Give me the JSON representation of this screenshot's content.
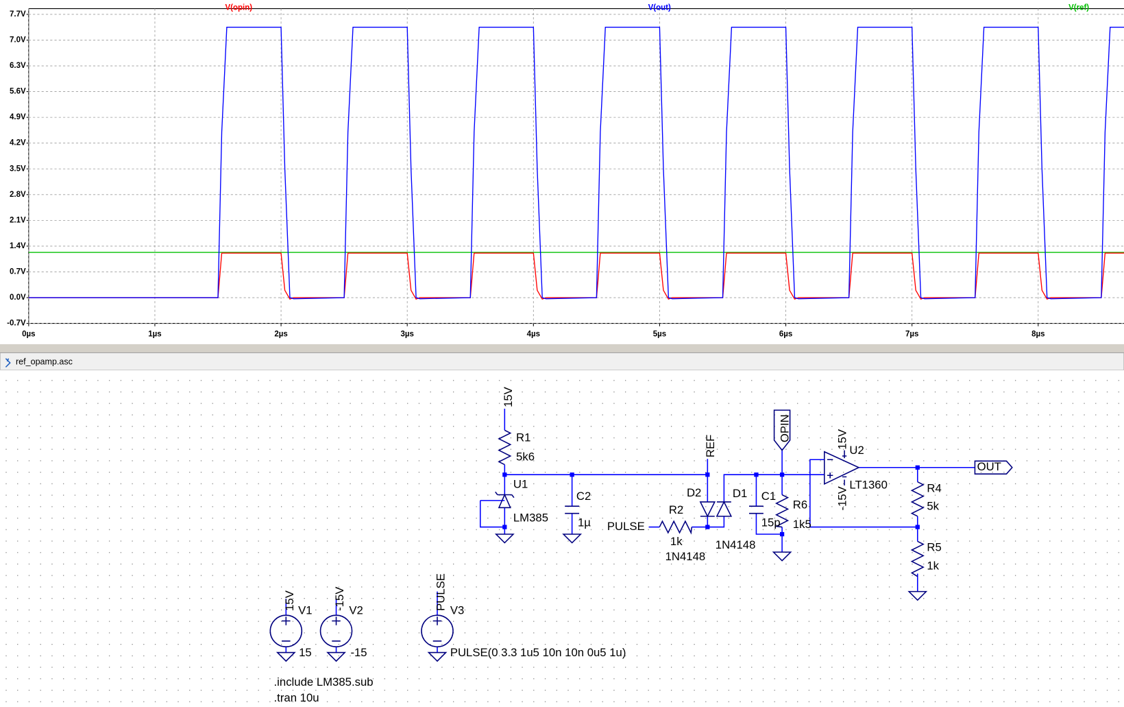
{
  "chart_data": {
    "type": "line",
    "x": [
      0,
      1.5,
      1.53,
      1.57,
      2,
      2.03,
      2.07,
      2.1,
      2.5,
      2.53,
      2.57,
      3,
      3.03,
      3.07,
      3.1,
      3.5,
      3.53,
      3.57,
      4,
      4.03,
      4.07,
      4.1,
      4.5,
      4.53,
      4.57,
      5,
      5.03,
      5.07,
      5.1,
      5.5,
      5.53,
      5.57,
      6,
      6.03,
      6.07,
      6.1,
      6.5,
      6.53,
      6.57,
      7,
      7.03,
      7.07,
      7.1,
      7.5,
      7.53,
      7.57,
      8,
      8.03,
      8.07,
      8.1,
      8.5,
      8.53,
      8.57,
      8.68
    ],
    "series": [
      {
        "name": "V(opin)",
        "color": "#ff0000",
        "values": [
          0,
          0,
          1.21,
          1.21,
          1.21,
          0.2,
          -0.04,
          0,
          0,
          1.21,
          1.21,
          1.21,
          0.2,
          -0.04,
          0,
          0,
          1.21,
          1.21,
          1.21,
          0.2,
          -0.04,
          0,
          0,
          1.21,
          1.21,
          1.21,
          0.2,
          -0.04,
          0,
          0,
          1.21,
          1.21,
          1.21,
          0.2,
          -0.04,
          0,
          0,
          1.21,
          1.21,
          1.21,
          0.2,
          -0.04,
          0,
          0,
          1.21,
          1.21,
          1.21,
          0.2,
          -0.04,
          0,
          0,
          1.21,
          1.21,
          1.21
        ]
      },
      {
        "name": "V(out)",
        "color": "#0000ff",
        "values": [
          0,
          0,
          4.5,
          7.35,
          7.35,
          3.5,
          0,
          -0.03,
          0,
          4.5,
          7.35,
          7.35,
          3.5,
          0,
          -0.03,
          0,
          4.5,
          7.35,
          7.35,
          3.5,
          0,
          -0.03,
          0,
          4.5,
          7.35,
          7.35,
          3.5,
          0,
          -0.03,
          0,
          4.5,
          7.35,
          7.35,
          3.5,
          0,
          -0.03,
          0,
          4.5,
          7.35,
          7.35,
          3.5,
          0,
          -0.03,
          0,
          4.5,
          7.35,
          7.35,
          3.5,
          0,
          -0.03,
          0,
          4.5,
          7.35,
          7.35
        ]
      },
      {
        "name": "V(ref)",
        "color": "#00c000",
        "values": [
          1.23,
          1.23,
          1.23,
          1.23,
          1.23,
          1.23,
          1.23,
          1.23,
          1.23,
          1.23,
          1.23,
          1.23,
          1.23,
          1.23,
          1.23,
          1.23,
          1.23,
          1.23,
          1.23,
          1.23,
          1.23,
          1.23,
          1.23,
          1.23,
          1.23,
          1.23,
          1.23,
          1.23,
          1.23,
          1.23,
          1.23,
          1.23,
          1.23,
          1.23,
          1.23,
          1.23,
          1.23,
          1.23,
          1.23,
          1.23,
          1.23,
          1.23,
          1.23,
          1.23,
          1.23,
          1.23,
          1.23,
          1.23,
          1.23,
          1.23,
          1.23,
          1.23,
          1.23,
          1.23
        ]
      }
    ],
    "xlim": [
      0,
      8.68
    ],
    "xticks": [
      {
        "value": 0,
        "label": "0µs"
      },
      {
        "value": 1,
        "label": "1µs"
      },
      {
        "value": 2,
        "label": "2µs"
      },
      {
        "value": 3,
        "label": "3µs"
      },
      {
        "value": 4,
        "label": "4µs"
      },
      {
        "value": 5,
        "label": "5µs"
      },
      {
        "value": 6,
        "label": "6µs"
      },
      {
        "value": 7,
        "label": "7µs"
      },
      {
        "value": 8,
        "label": "8µs"
      }
    ],
    "ylim": [
      -0.7,
      7.7
    ],
    "yticks": [
      {
        "value": -0.7,
        "label": "-0.7V"
      },
      {
        "value": 0,
        "label": "0.0V"
      },
      {
        "value": 0.7,
        "label": "0.7V"
      },
      {
        "value": 1.4,
        "label": "1.4V"
      },
      {
        "value": 2.1,
        "label": "2.1V"
      },
      {
        "value": 2.8,
        "label": "2.8V"
      },
      {
        "value": 3.5,
        "label": "3.5V"
      },
      {
        "value": 4.2,
        "label": "4.2V"
      },
      {
        "value": 4.9,
        "label": "4.9V"
      },
      {
        "value": 5.6,
        "label": "5.6V"
      },
      {
        "value": 6.3,
        "label": "6.3V"
      },
      {
        "value": 7,
        "label": "7.0V"
      },
      {
        "value": 7.7,
        "label": "7.7V"
      }
    ],
    "grid": true
  },
  "schematic": {
    "title": "ref_opamp.asc",
    "labels": [
      "15V",
      "R1",
      "5k6",
      "U1",
      "LM385",
      "C2",
      "1µ",
      "REF",
      "D2",
      "D1",
      "PULSE",
      "R2",
      "1k",
      "1N4148",
      "1N4148",
      "C1",
      "15p",
      "OPIN",
      "R6",
      "1k5",
      "15V",
      "U2",
      "-15V",
      "LT1360",
      "OUT",
      "R4",
      "5k",
      "R5",
      "1k",
      "15V",
      "V1",
      "15",
      "-15V",
      "V2",
      "-15",
      "PULSE",
      "V3",
      "PULSE(0 3.3 1u5 10n 10n 0u5 1u)",
      ".include LM385.sub",
      ".tran 10u"
    ]
  }
}
